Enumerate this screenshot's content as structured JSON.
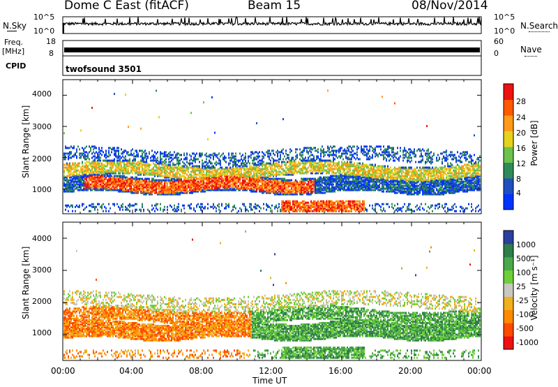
{
  "header": {
    "station": "Dome C East (fitACF)",
    "beam": "Beam 15",
    "date": "08/Nov/2014"
  },
  "summary_panels": {
    "nsky_label": "N.Sky",
    "nsky_ticks": [
      "10^5",
      "10^0"
    ],
    "nsearch_label": "N.Search",
    "nsearch_ticks": [
      "10^5",
      "10^0"
    ],
    "freq_label_1": "Freq.",
    "freq_label_2": "[MHz]",
    "freq_ticks": [
      "18",
      "8"
    ],
    "nave_label": "Nave",
    "nave_ticks": [
      "60",
      "0"
    ],
    "cpid_label": "CPID",
    "cpid_value": "twofsound  3501"
  },
  "chart_data": [
    {
      "type": "heatmap",
      "name": "power",
      "ylabel": "Slant Range [km]",
      "ylim": [
        200,
        4500
      ],
      "xlim": [
        "00:00",
        "24:00"
      ],
      "yticks": [
        "4000",
        "3000",
        "2000",
        "1000"
      ],
      "colorbar_label": "Power [dB]",
      "colorbar_ticks": [
        "28",
        "24",
        "20",
        "16",
        "12",
        "8",
        "4"
      ],
      "colorscale": [
        "#0033ff",
        "#1f4fbf",
        "#2e8b57",
        "#6cc24a",
        "#e6d21a",
        "#ff9a1a",
        "#ff5a00",
        "#ee1111"
      ],
      "bands": [
        {
          "y": [
            900,
            1300
          ],
          "dominant": "strong"
        },
        {
          "y": [
            1300,
            1800
          ],
          "dominant": "medium"
        },
        {
          "y": [
            1800,
            2300
          ],
          "dominant": "weak"
        }
      ]
    },
    {
      "type": "heatmap",
      "name": "velocity",
      "ylabel": "Slant Range [km]",
      "ylim": [
        200,
        4500
      ],
      "xlim": [
        "00:00",
        "24:00"
      ],
      "yticks": [
        "4000",
        "3000",
        "2000",
        "1000"
      ],
      "colorbar_label": "Velocity [m s⁻¹]",
      "colorbar_ticks": [
        "1000",
        "500",
        "100",
        "25",
        "-25",
        "-100",
        "-500",
        "-1000"
      ],
      "colorscale": [
        "#2a3fa0",
        "#2f7d4a",
        "#4aa84a",
        "#6fcf3a",
        "#c8c8c0",
        "#f0b020",
        "#ff8a00",
        "#ff4a00",
        "#ee1111"
      ]
    }
  ],
  "xaxis": {
    "label": "Time UT",
    "ticks": [
      "00:00",
      "04:00",
      "08:00",
      "12:00",
      "16:00",
      "20:00",
      "00:00"
    ]
  }
}
